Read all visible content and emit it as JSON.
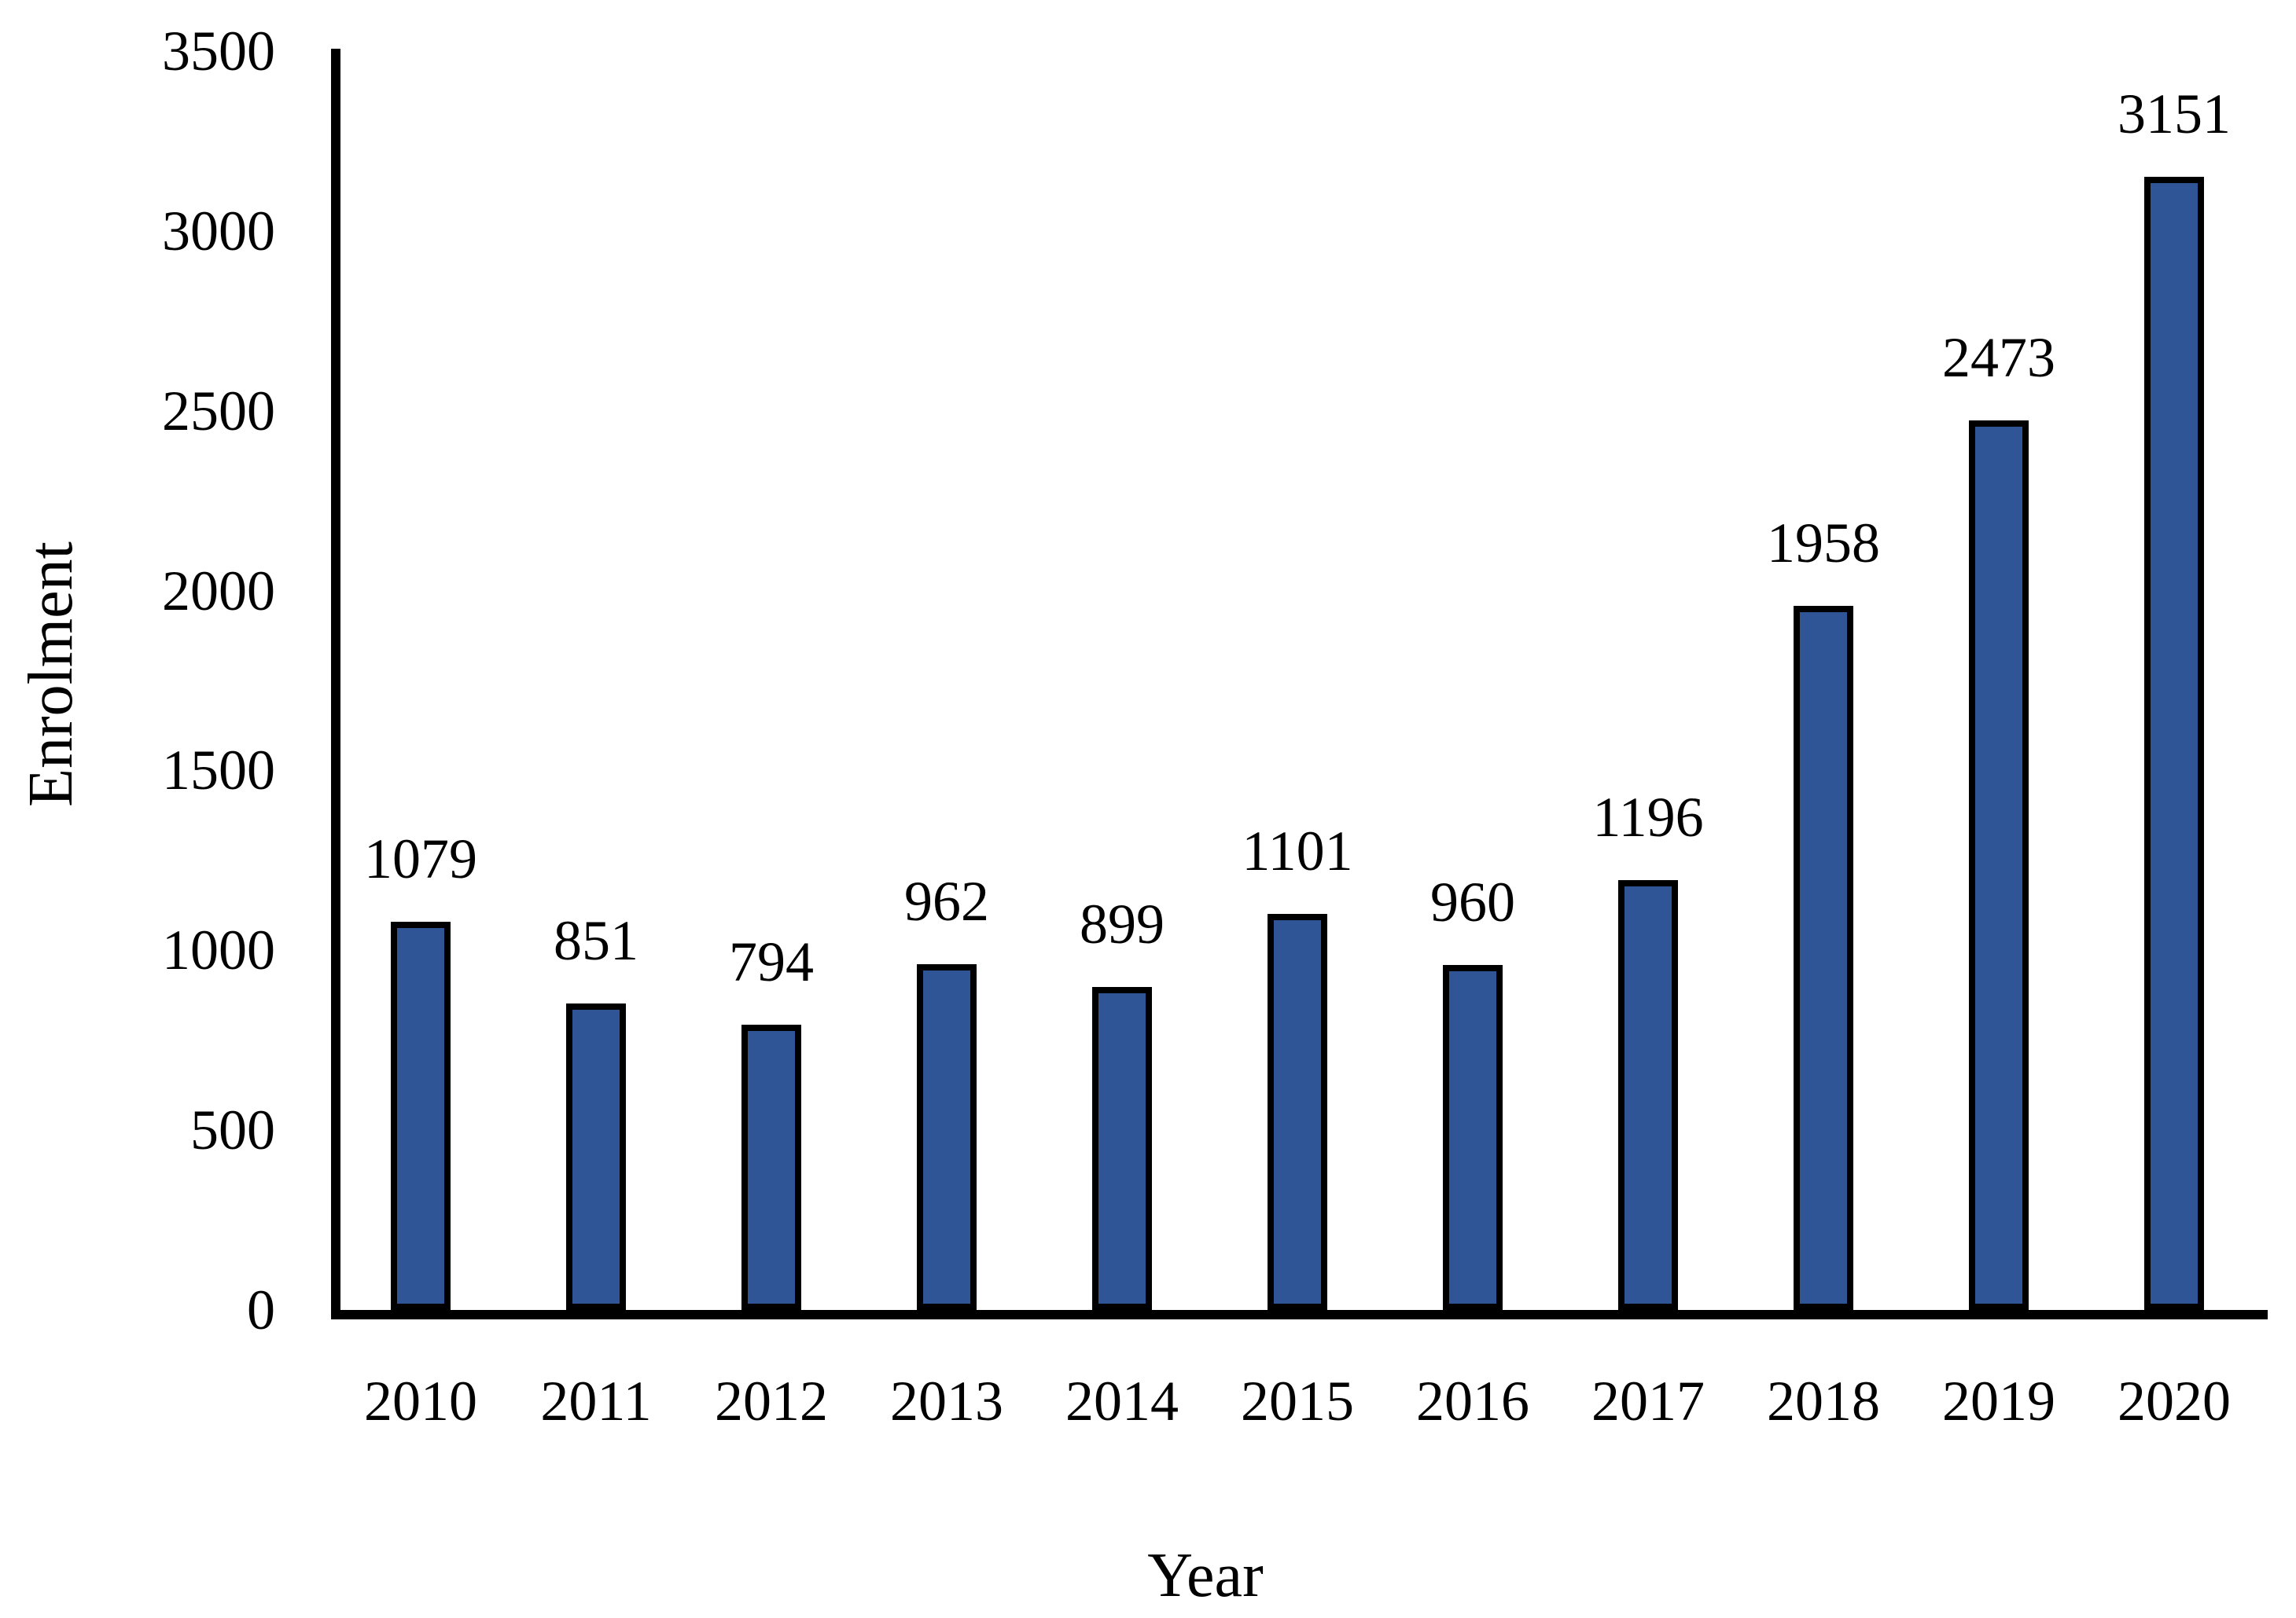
{
  "chart_data": {
    "type": "bar",
    "title": "",
    "xlabel": "Year",
    "ylabel": "Enrolment",
    "categories": [
      "2010",
      "2011",
      "2012",
      "2013",
      "2014",
      "2015",
      "2016",
      "2017",
      "2018",
      "2019",
      "2020"
    ],
    "values": [
      1079,
      851,
      794,
      962,
      899,
      1101,
      960,
      1196,
      1958,
      2473,
      3151
    ],
    "bar_labels": [
      "1079",
      "851",
      "794",
      "962",
      "899",
      "1101",
      "960",
      "1196",
      "1958",
      "2473",
      "3151"
    ],
    "yticks": [
      0,
      500,
      1000,
      1500,
      2000,
      2500,
      3000,
      3500
    ],
    "ytick_labels": [
      "0",
      "500",
      "1000",
      "1500",
      "2000",
      "2500",
      "3000",
      "3500"
    ],
    "ylim": [
      0,
      3500
    ],
    "grid": false,
    "legend_position": "none",
    "colors": {
      "bar_fill": "#2F5597",
      "bar_border": "#000000",
      "axis": "#000000",
      "text": "#000000",
      "background": "#FFFFFF"
    }
  }
}
